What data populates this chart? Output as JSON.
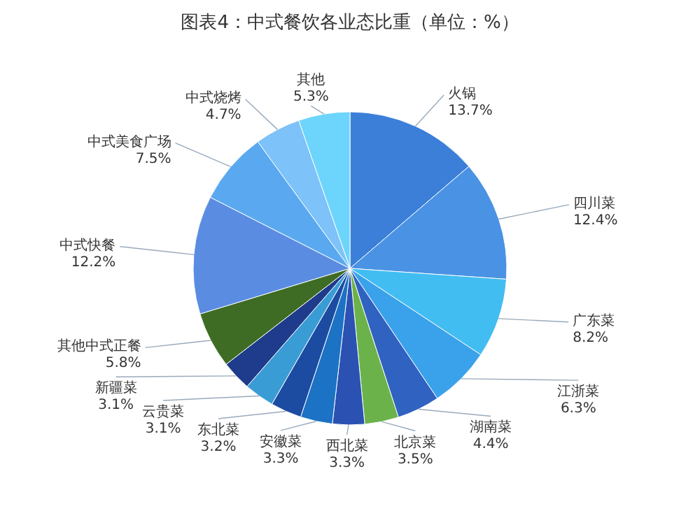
{
  "chart_data": {
    "type": "pie",
    "title": "图表4：中式餐饮各业态比重（单位：%）",
    "categories": [
      "火锅",
      "四川菜",
      "广东菜",
      "江浙菜",
      "湖南菜",
      "北京菜",
      "西北菜",
      "安徽菜",
      "东北菜",
      "云贵菜",
      "新疆菜",
      "其他中式正餐",
      "中式快餐",
      "中式美食广场",
      "中式烧烤",
      "其他"
    ],
    "values": [
      13.7,
      12.4,
      8.2,
      6.3,
      4.4,
      3.5,
      3.3,
      3.3,
      3.2,
      3.1,
      3.1,
      5.8,
      12.2,
      7.5,
      4.7,
      5.3
    ],
    "colors": [
      "#3b7fd9",
      "#4a92e4",
      "#42bdf2",
      "#3aa2ea",
      "#3062c2",
      "#6cb24a",
      "#2b52b2",
      "#1c72c4",
      "#1b4ca2",
      "#3a9cd4",
      "#1f3c8c",
      "#3e6c24",
      "#5a8de2",
      "#5aa9f0",
      "#7dc2f8",
      "#6dd5fc"
    ],
    "value_labels": [
      "13.7%",
      "12.4%",
      "8.2%",
      "6.3%",
      "4.4%",
      "3.5%",
      "3.3%",
      "3.3%",
      "3.2%",
      "3.1%",
      "3.1%",
      "5.8%",
      "12.2%",
      "7.5%",
      "4.7%",
      "5.3%"
    ]
  }
}
